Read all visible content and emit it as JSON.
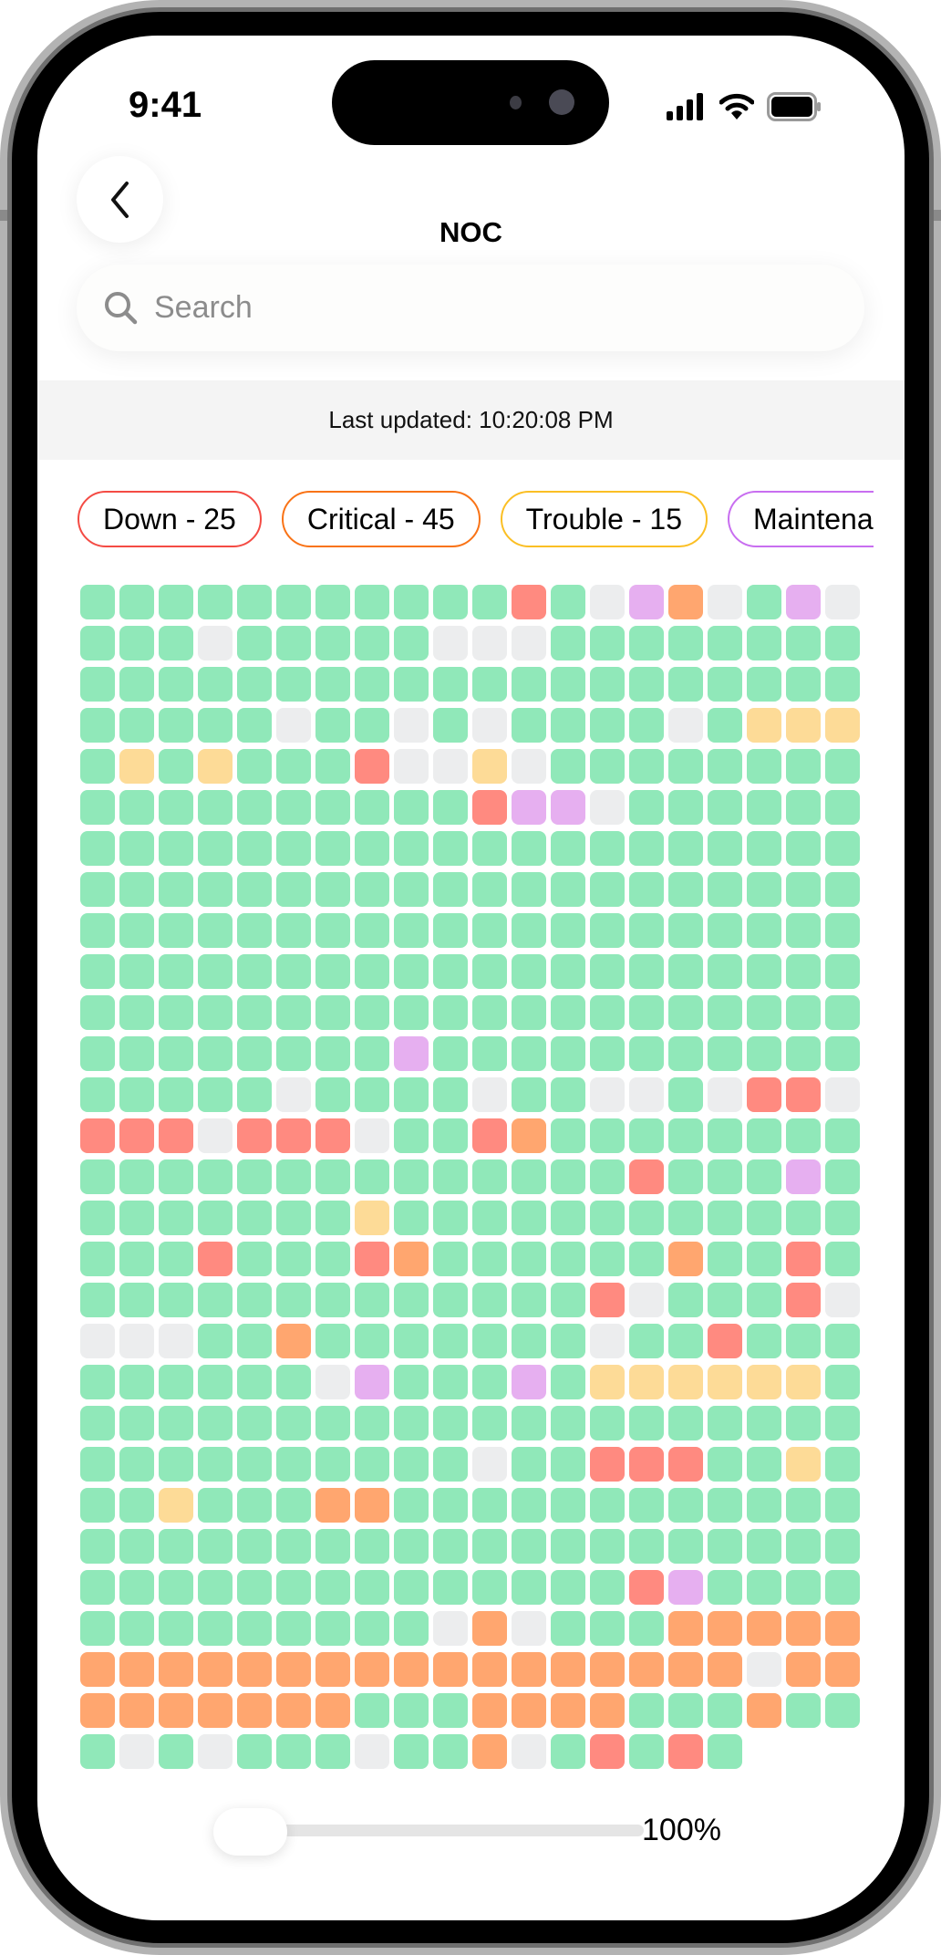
{
  "status_bar": {
    "time": "9:41",
    "icons": [
      "cellular-signal-icon",
      "wifi-icon",
      "battery-icon"
    ]
  },
  "header": {
    "title": "NOC",
    "back_icon": "chevron-left-icon"
  },
  "search": {
    "placeholder": "Search",
    "value": "",
    "icon": "search-icon"
  },
  "last_updated": "Last updated: 10:20:08 PM",
  "filters": [
    {
      "label": "Down - 25",
      "color": "#f44b44"
    },
    {
      "label": "Critical - 45",
      "color": "#f97316"
    },
    {
      "label": "Trouble - 15",
      "color": "#fbbf24"
    },
    {
      "label": "Maintena",
      "color": "#c86ef0"
    }
  ],
  "status_colors": {
    "G": {
      "status": "up",
      "color": "#90e8b9"
    },
    "R": {
      "status": "down",
      "color": "#ff8a80"
    },
    "O": {
      "status": "critical",
      "color": "#ffa66f"
    },
    "Y": {
      "status": "trouble",
      "color": "#fddb97"
    },
    "P": {
      "status": "maintenance",
      "color": "#e6aff0"
    },
    "N": {
      "status": "unknown",
      "color": "#ecedee"
    }
  },
  "grid_rows": [
    "GGGGGGGGGGGRGNPONGPN",
    "GGGNGGGGGNNNGGGGGGGG",
    "GGGGGGGGGGGGGGGGGGGG",
    "GGGGGNGGNGNGGGGNGYYY",
    "GYGYGGGRNNYNGGGGGGGG",
    "GGGGGGGGGGRPPNGGGGGG",
    "GGGGGGGGGGGGGGGGGGGG",
    "GGGGGGGGGGGGGGGGGGGG",
    "GGGGGGGGGGGGGGGGGGGG",
    "GGGGGGGGGGGGGGGGGGGG",
    "GGGGGGGGGGGGGGGGGGGG",
    "GGGGGGGGPGGGGGGGGGGG",
    "GGGGGNGGGGNGGNNGNRRN",
    "RRRNRRRNGGROGGGGGGGG",
    "GGGGGGGGGGGGGGRGGGPG",
    "GGGGGGGYGGGGGGGGGGGG",
    "GGGRGGGROGGGGGGOGGRG",
    "GGGGGGGGGGGGGRNGGGRN",
    "NNNGGOGGGGGGGNGGRGGG",
    "GGGGGGNPGGGPGYYYYYYG",
    "GGGGGGGGGGGGGGGGGGGG",
    "GGGGGGGGGGNGGRRRGGYG",
    "GGYGGGOOGGGGGGGGGGGG",
    "GGGGGGGGGGGGGGGGGGGG",
    "GGGGGGGGGGGGGGRPGGGG",
    "GGGGGGGGGNONGGGOOOOO",
    "OOOOOOOOOOOOOOOOONOO",
    "OOOOOOOGGGOOOOGGGOGG",
    "GNGNGGGNGGONGRGRG"
  ],
  "zoom": {
    "label": "100%",
    "value": 100
  }
}
